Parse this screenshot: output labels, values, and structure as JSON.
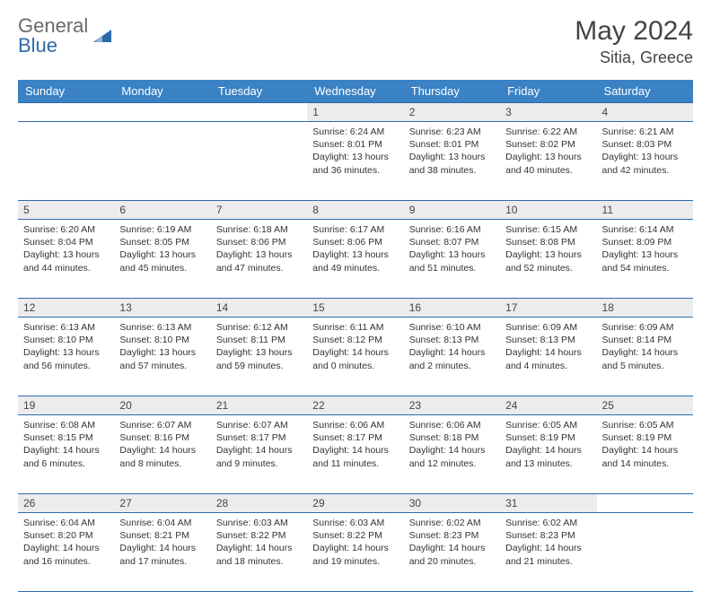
{
  "logo": {
    "line1": "General",
    "line2": "Blue"
  },
  "title": "May 2024",
  "location": "Sitia, Greece",
  "colors": {
    "header_bg": "#3a82c4",
    "header_text": "#ffffff",
    "border": "#2f6aa8",
    "daynum_bg": "#ececec",
    "text": "#333333",
    "logo_gray": "#6b6b6b",
    "logo_blue": "#2f6aa8"
  },
  "day_labels": [
    "Sunday",
    "Monday",
    "Tuesday",
    "Wednesday",
    "Thursday",
    "Friday",
    "Saturday"
  ],
  "weeks": [
    [
      null,
      null,
      null,
      {
        "d": "1",
        "sr": "6:24 AM",
        "ss": "8:01 PM",
        "dl": "13 hours and 36 minutes."
      },
      {
        "d": "2",
        "sr": "6:23 AM",
        "ss": "8:01 PM",
        "dl": "13 hours and 38 minutes."
      },
      {
        "d": "3",
        "sr": "6:22 AM",
        "ss": "8:02 PM",
        "dl": "13 hours and 40 minutes."
      },
      {
        "d": "4",
        "sr": "6:21 AM",
        "ss": "8:03 PM",
        "dl": "13 hours and 42 minutes."
      }
    ],
    [
      {
        "d": "5",
        "sr": "6:20 AM",
        "ss": "8:04 PM",
        "dl": "13 hours and 44 minutes."
      },
      {
        "d": "6",
        "sr": "6:19 AM",
        "ss": "8:05 PM",
        "dl": "13 hours and 45 minutes."
      },
      {
        "d": "7",
        "sr": "6:18 AM",
        "ss": "8:06 PM",
        "dl": "13 hours and 47 minutes."
      },
      {
        "d": "8",
        "sr": "6:17 AM",
        "ss": "8:06 PM",
        "dl": "13 hours and 49 minutes."
      },
      {
        "d": "9",
        "sr": "6:16 AM",
        "ss": "8:07 PM",
        "dl": "13 hours and 51 minutes."
      },
      {
        "d": "10",
        "sr": "6:15 AM",
        "ss": "8:08 PM",
        "dl": "13 hours and 52 minutes."
      },
      {
        "d": "11",
        "sr": "6:14 AM",
        "ss": "8:09 PM",
        "dl": "13 hours and 54 minutes."
      }
    ],
    [
      {
        "d": "12",
        "sr": "6:13 AM",
        "ss": "8:10 PM",
        "dl": "13 hours and 56 minutes."
      },
      {
        "d": "13",
        "sr": "6:13 AM",
        "ss": "8:10 PM",
        "dl": "13 hours and 57 minutes."
      },
      {
        "d": "14",
        "sr": "6:12 AM",
        "ss": "8:11 PM",
        "dl": "13 hours and 59 minutes."
      },
      {
        "d": "15",
        "sr": "6:11 AM",
        "ss": "8:12 PM",
        "dl": "14 hours and 0 minutes."
      },
      {
        "d": "16",
        "sr": "6:10 AM",
        "ss": "8:13 PM",
        "dl": "14 hours and 2 minutes."
      },
      {
        "d": "17",
        "sr": "6:09 AM",
        "ss": "8:13 PM",
        "dl": "14 hours and 4 minutes."
      },
      {
        "d": "18",
        "sr": "6:09 AM",
        "ss": "8:14 PM",
        "dl": "14 hours and 5 minutes."
      }
    ],
    [
      {
        "d": "19",
        "sr": "6:08 AM",
        "ss": "8:15 PM",
        "dl": "14 hours and 6 minutes."
      },
      {
        "d": "20",
        "sr": "6:07 AM",
        "ss": "8:16 PM",
        "dl": "14 hours and 8 minutes."
      },
      {
        "d": "21",
        "sr": "6:07 AM",
        "ss": "8:17 PM",
        "dl": "14 hours and 9 minutes."
      },
      {
        "d": "22",
        "sr": "6:06 AM",
        "ss": "8:17 PM",
        "dl": "14 hours and 11 minutes."
      },
      {
        "d": "23",
        "sr": "6:06 AM",
        "ss": "8:18 PM",
        "dl": "14 hours and 12 minutes."
      },
      {
        "d": "24",
        "sr": "6:05 AM",
        "ss": "8:19 PM",
        "dl": "14 hours and 13 minutes."
      },
      {
        "d": "25",
        "sr": "6:05 AM",
        "ss": "8:19 PM",
        "dl": "14 hours and 14 minutes."
      }
    ],
    [
      {
        "d": "26",
        "sr": "6:04 AM",
        "ss": "8:20 PM",
        "dl": "14 hours and 16 minutes."
      },
      {
        "d": "27",
        "sr": "6:04 AM",
        "ss": "8:21 PM",
        "dl": "14 hours and 17 minutes."
      },
      {
        "d": "28",
        "sr": "6:03 AM",
        "ss": "8:22 PM",
        "dl": "14 hours and 18 minutes."
      },
      {
        "d": "29",
        "sr": "6:03 AM",
        "ss": "8:22 PM",
        "dl": "14 hours and 19 minutes."
      },
      {
        "d": "30",
        "sr": "6:02 AM",
        "ss": "8:23 PM",
        "dl": "14 hours and 20 minutes."
      },
      {
        "d": "31",
        "sr": "6:02 AM",
        "ss": "8:23 PM",
        "dl": "14 hours and 21 minutes."
      },
      null
    ]
  ],
  "labels": {
    "sunrise": "Sunrise:",
    "sunset": "Sunset:",
    "daylight": "Daylight:"
  }
}
